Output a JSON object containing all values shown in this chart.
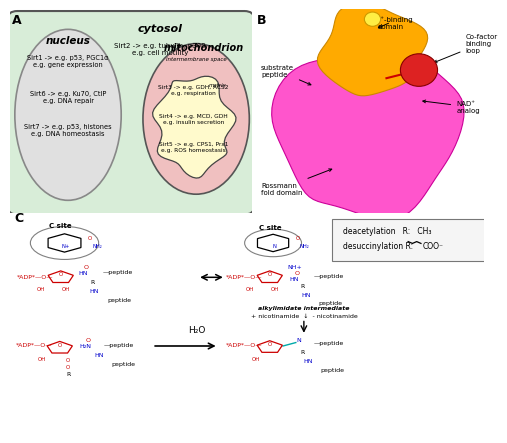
{
  "fig_width": 4.74,
  "fig_height": 4.24,
  "bg": "#ffffff",
  "panelA": {
    "label": "A",
    "cytosol_fc": "#d8edd8",
    "cytosol_ec": "#555555",
    "cytosol_label": "cytosol",
    "cytosol_text": "Sirt2 -> e.g. tubulin, p300\ne.g. cell motility",
    "nucleus_fc": "#e0e0e0",
    "nucleus_ec": "#888888",
    "nucleus_label": "nucleus",
    "sirt1_text": "Sirt1 -> e.g. p53, PGC1α\ne.g. gene expression",
    "sirt6_text": "Sirt6 -> e.g. Ku70, CtIP\ne.g. DNA repair",
    "sirt7_text": "Sirt7 -> e.g. p53, histones\ne.g. DNA homeostasis",
    "mito_label": "mitochondrion",
    "mito_outer_fc": "#f0c0c0",
    "mito_outer_ec": "#555555",
    "mito_ims_label": "intermembrane space",
    "mito_matrix_label": "matrix",
    "mito_matrix_fc": "#fffacc",
    "mito_matrix_ec": "#444444",
    "sirt3_text": "Sirt3 -> e.g. GDH, ACS2\ne.g. respiration",
    "sirt4_text": "Sirt4 -> e.g. MCD, GDH\ne.g. insulin secretion",
    "sirt5_text": "Sirt5 -> e.g. CPS1, Prx1\ne.g. ROS homeostasis"
  },
  "panelB": {
    "label": "B",
    "rossmann_fc": "#ff66cc",
    "zn_fc": "#ffaa00",
    "cofactor_fc": "#dd2222",
    "ann_zn": "Zn²⁺-binding\ndomain",
    "ann_cofactor": "Co-factor\nbinding\nloop",
    "ann_substrate": "substrate\npeptide",
    "ann_rossmann": "Rossmann\nfold domain",
    "ann_nad": "NAD⁺\nanalog"
  },
  "red": "#cc0000",
  "blue": "#0000cc",
  "black": "#000000"
}
